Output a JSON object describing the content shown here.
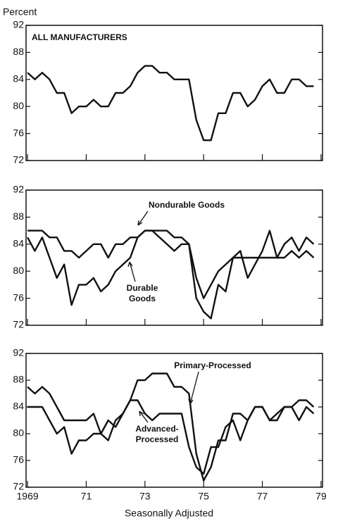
{
  "chart_data": [
    {
      "type": "line",
      "title": "ALL MANUFACTURERS",
      "y_label": "Percent",
      "x": [
        1969,
        1969.25,
        1969.5,
        1969.75,
        1970,
        1970.25,
        1970.5,
        1970.75,
        1971,
        1971.25,
        1971.5,
        1971.75,
        1972,
        1972.25,
        1972.5,
        1972.75,
        1973,
        1973.25,
        1973.5,
        1973.75,
        1974,
        1974.25,
        1974.5,
        1974.75,
        1975,
        1975.25,
        1975.5,
        1975.75,
        1976,
        1976.25,
        1976.5,
        1976.75,
        1977,
        1977.25,
        1977.5,
        1977.75,
        1978,
        1978.25,
        1978.5,
        1978.75
      ],
      "series": [
        {
          "color": "#111111",
          "values": [
            85,
            84,
            85,
            84,
            82,
            82,
            79,
            80,
            80,
            81,
            80,
            80,
            82,
            82,
            83,
            85,
            86,
            86,
            85,
            85,
            84,
            84,
            84,
            78,
            75,
            75,
            79,
            79,
            82,
            82,
            80,
            81,
            83,
            84,
            82,
            82,
            84,
            84,
            83,
            83
          ]
        }
      ],
      "xlim": [
        1968.95,
        1979.05
      ],
      "xticks": [
        1969,
        1971,
        1973,
        1975,
        1977,
        1979
      ],
      "ylim": [
        72,
        92
      ],
      "yticks": [
        72,
        76,
        80,
        84,
        88,
        92
      ]
    },
    {
      "type": "line",
      "x": [
        1969,
        1969.25,
        1969.5,
        1969.75,
        1970,
        1970.25,
        1970.5,
        1970.75,
        1971,
        1971.25,
        1971.5,
        1971.75,
        1972,
        1972.25,
        1972.5,
        1972.75,
        1973,
        1973.25,
        1973.5,
        1973.75,
        1974,
        1974.25,
        1974.5,
        1974.75,
        1975,
        1975.25,
        1975.5,
        1975.75,
        1976,
        1976.25,
        1976.5,
        1976.75,
        1977,
        1977.25,
        1977.5,
        1977.75,
        1978,
        1978.25,
        1978.5,
        1978.75
      ],
      "series": [
        {
          "name": "Nondurable Goods",
          "color": "#111111",
          "values": [
            86,
            86,
            86,
            85,
            85,
            83,
            83,
            82,
            83,
            84,
            84,
            82,
            84,
            84,
            85,
            85,
            86,
            86,
            86,
            86,
            85,
            85,
            84,
            79,
            76,
            78,
            80,
            81,
            82,
            82,
            82,
            82,
            82,
            82,
            82,
            84,
            85,
            83,
            85,
            84
          ]
        },
        {
          "name": "Durable Goods",
          "color": "#111111",
          "values": [
            85,
            83,
            85,
            82,
            79,
            81,
            75,
            78,
            78,
            79,
            77,
            78,
            80,
            81,
            82,
            85,
            86,
            86,
            85,
            84,
            83,
            84,
            84,
            76,
            74,
            73,
            78,
            77,
            82,
            83,
            79,
            81,
            83,
            86,
            82,
            82,
            83,
            82,
            83,
            82
          ]
        }
      ],
      "xlim": [
        1968.95,
        1979.05
      ],
      "xticks": [
        1969,
        1971,
        1973,
        1975,
        1977,
        1979
      ],
      "ylim": [
        72,
        92
      ],
      "yticks": [
        72,
        76,
        80,
        84,
        88,
        92
      ]
    },
    {
      "type": "line",
      "x_label": "Seasonally Adjusted",
      "x": [
        1969,
        1969.25,
        1969.5,
        1969.75,
        1970,
        1970.25,
        1970.5,
        1970.75,
        1971,
        1971.25,
        1971.5,
        1971.75,
        1972,
        1972.25,
        1972.5,
        1972.75,
        1973,
        1973.25,
        1973.5,
        1973.75,
        1974,
        1974.25,
        1974.5,
        1974.75,
        1975,
        1975.25,
        1975.5,
        1975.75,
        1976,
        1976.25,
        1976.5,
        1976.75,
        1977,
        1977.25,
        1977.5,
        1977.75,
        1978,
        1978.25,
        1978.5,
        1978.75
      ],
      "series": [
        {
          "name": "Primary-Processed",
          "color": "#111111",
          "values": [
            87,
            86,
            87,
            86,
            84,
            82,
            82,
            82,
            82,
            83,
            80,
            79,
            82,
            83,
            85,
            88,
            88,
            89,
            89,
            89,
            87,
            87,
            86,
            77,
            73,
            75,
            79,
            79,
            83,
            83,
            82,
            84,
            84,
            82,
            83,
            84,
            84,
            85,
            85,
            84
          ]
        },
        {
          "name": "Advanced-Processed",
          "color": "#111111",
          "values": [
            84,
            84,
            84,
            82,
            80,
            81,
            77,
            79,
            79,
            80,
            80,
            82,
            81,
            83,
            85,
            85,
            83,
            82,
            83,
            83,
            83,
            83,
            78,
            75,
            74,
            78,
            78,
            81,
            82,
            79,
            82,
            84,
            84,
            82,
            82,
            84,
            84,
            82,
            84,
            83
          ]
        }
      ],
      "xlim": [
        1968.95,
        1979.05
      ],
      "xticks": [
        1969,
        {
          "value": 1971,
          "label": "71"
        },
        {
          "value": 1973,
          "label": "73"
        },
        {
          "value": 1975,
          "label": "75"
        },
        {
          "value": 1977,
          "label": "77"
        },
        {
          "value": 1979,
          "label": "79"
        }
      ],
      "ylim": [
        72,
        92
      ],
      "yticks": [
        72,
        76,
        80,
        84,
        88,
        92
      ]
    }
  ]
}
